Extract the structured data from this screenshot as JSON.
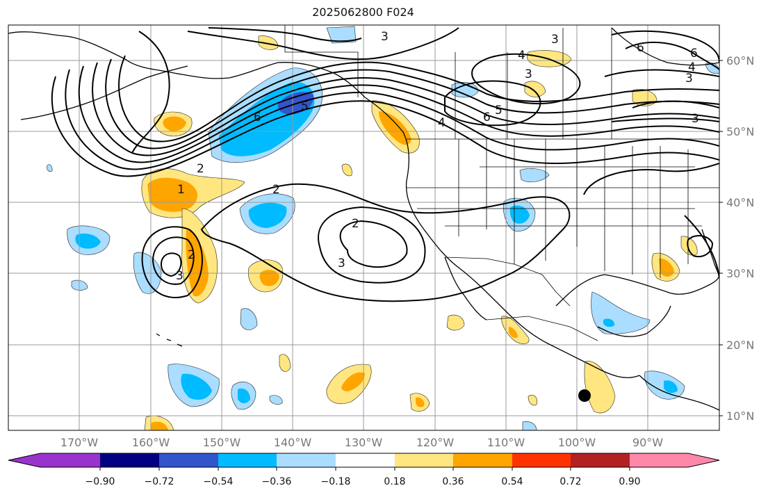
{
  "title": "2025062800 F024",
  "map": {
    "lat_labels": [
      "60°N",
      "50°N",
      "40°N",
      "30°N",
      "20°N",
      "10°N"
    ],
    "lon_labels": [
      "170°W",
      "160°W",
      "150°W",
      "140°W",
      "130°W",
      "120°W",
      "110°W",
      "100°W",
      "90°W"
    ],
    "contour_labels": [
      "3",
      "3",
      "3",
      "4",
      "3",
      "6",
      "4",
      "3",
      "6",
      "6",
      "5",
      "4",
      "5",
      "6",
      "2",
      "1",
      "2",
      "2",
      "3",
      "2",
      "3"
    ],
    "marker": "storm-center-dot"
  },
  "colorbar": {
    "tick_labels": [
      "−0.90",
      "−0.72",
      "−0.54",
      "−0.36",
      "−0.18",
      "0.18",
      "0.36",
      "0.54",
      "0.72",
      "0.90"
    ],
    "colors": [
      "#9933cc",
      "#000080",
      "#3355cc",
      "#00bbff",
      "#aaddff",
      "#ffffff",
      "#ffe680",
      "#ffa500",
      "#ff3300",
      "#b22222",
      "#ff88aa"
    ]
  }
}
